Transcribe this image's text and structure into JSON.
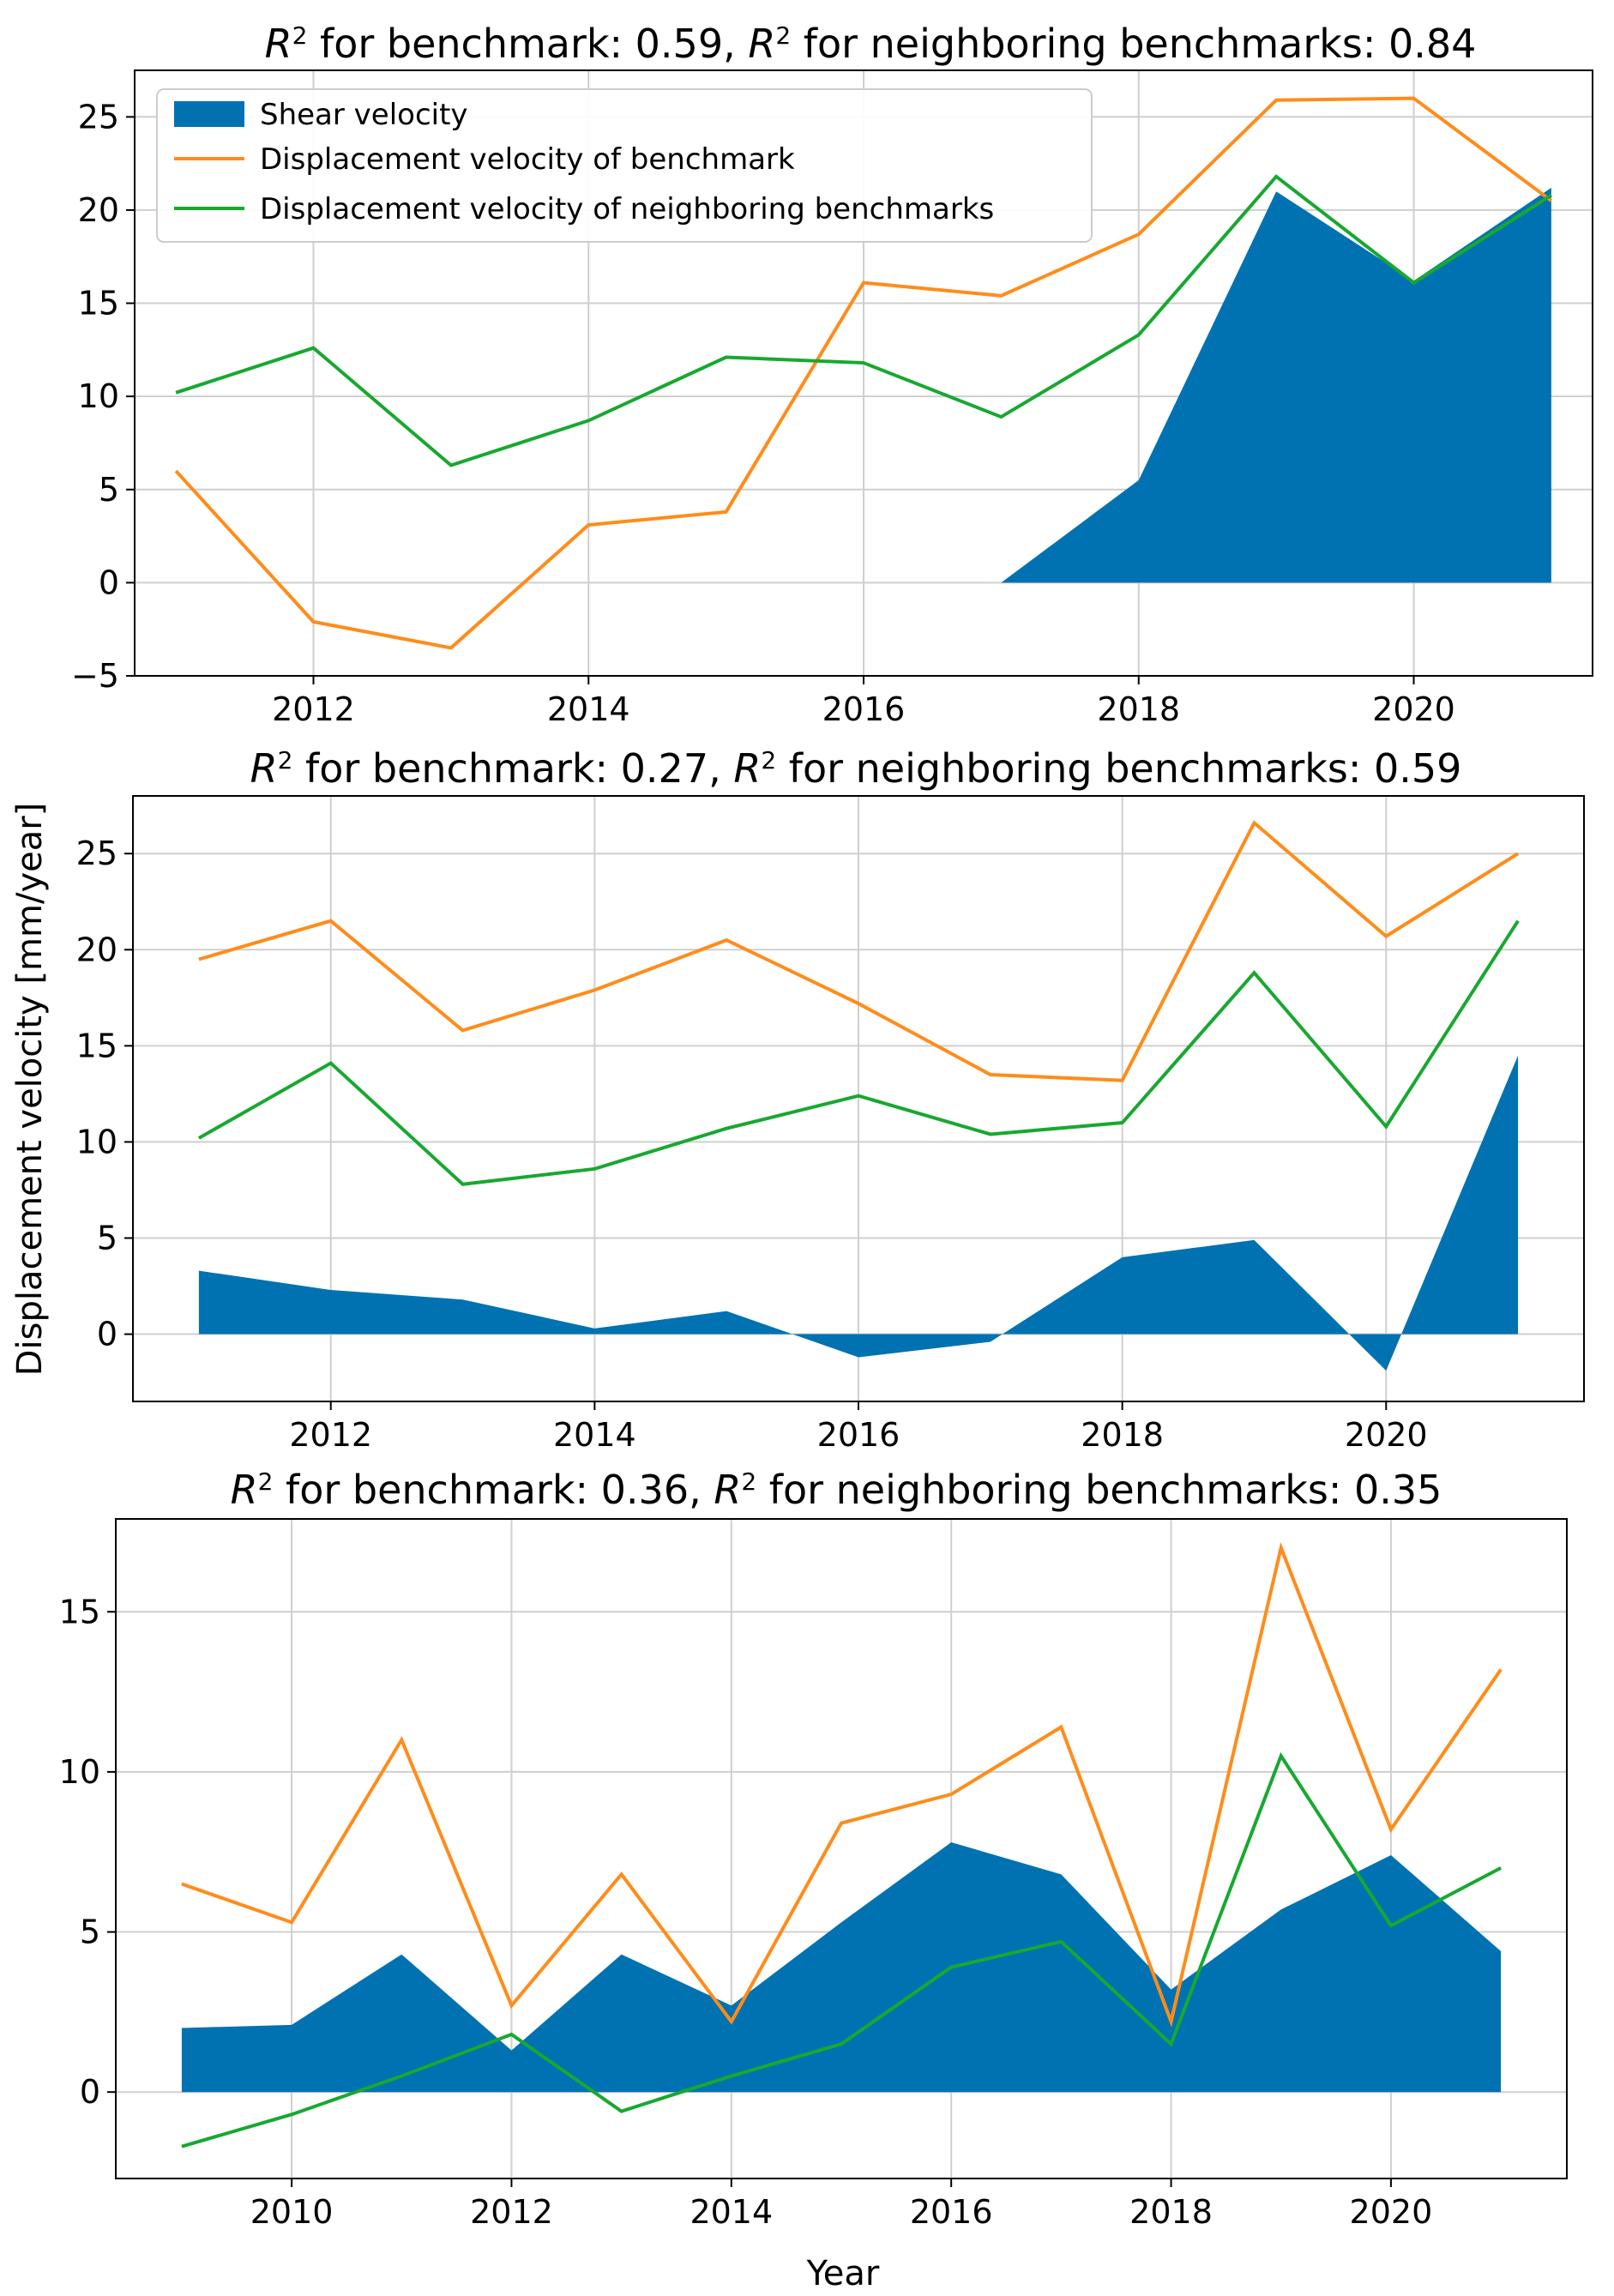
{
  "colors": {
    "shear": "#0072b2",
    "benchmark": "#ff8c1a",
    "neighbors": "#18a830",
    "grid": "#cfcfcf",
    "frame": "#000000"
  },
  "figure": {
    "ylabel": "Displacement velocity [mm/year]",
    "xlabel": "Year"
  },
  "legend": {
    "shear": "Shear velocity",
    "benchmark": "Displacement velocity of benchmark",
    "neighbors": "Displacement velocity of neighboring benchmarks"
  },
  "chart_data": [
    {
      "type": "line",
      "title_prefix": "R",
      "title_sup": "2",
      "title_mid": " for benchmark: 0.59, ",
      "title_prefix2": "R",
      "title_sup2": "2",
      "title_end": " for neighboring benchmarks: 0.84",
      "xlim": [
        2010.7,
        2021.3
      ],
      "ylim": [
        -5,
        27.5
      ],
      "xticks": [
        2012,
        2014,
        2016,
        2018,
        2020
      ],
      "yticks": [
        -5,
        0,
        5,
        10,
        15,
        20,
        25
      ],
      "x": [
        2011,
        2012,
        2013,
        2014,
        2015,
        2016,
        2017,
        2018,
        2019,
        2020,
        2021
      ],
      "series": [
        {
          "name": "Shear velocity",
          "key": "shear",
          "kind": "area",
          "x": [
            2017,
            2018,
            2019,
            2020,
            2021
          ],
          "values": [
            0,
            5.5,
            21.0,
            16.2,
            21.2
          ]
        },
        {
          "name": "Displacement velocity of benchmark",
          "key": "benchmark",
          "kind": "line",
          "values": [
            6.0,
            -2.1,
            -3.5,
            3.1,
            3.8,
            16.1,
            15.4,
            18.7,
            25.9,
            26.0,
            20.5
          ]
        },
        {
          "name": "Displacement velocity of neighboring benchmarks",
          "key": "neighbors",
          "kind": "line",
          "values": [
            10.2,
            12.6,
            6.3,
            8.7,
            12.1,
            11.8,
            8.9,
            13.3,
            21.8,
            16.1,
            20.8
          ]
        }
      ]
    },
    {
      "type": "line",
      "title_prefix": "R",
      "title_sup": "2",
      "title_mid": " for benchmark: 0.27, ",
      "title_prefix2": "R",
      "title_sup2": "2",
      "title_end": " for neighboring benchmarks: 0.59",
      "xlim": [
        2010.5,
        2021.5
      ],
      "ylim": [
        -3.5,
        28.0
      ],
      "xticks": [
        2012,
        2014,
        2016,
        2018,
        2020
      ],
      "yticks": [
        0,
        5,
        10,
        15,
        20,
        25
      ],
      "x": [
        2011,
        2012,
        2013,
        2014,
        2015,
        2016,
        2017,
        2018,
        2019,
        2020,
        2021
      ],
      "series": [
        {
          "name": "Shear velocity",
          "key": "shear",
          "kind": "area",
          "values": [
            3.3,
            2.3,
            1.8,
            0.3,
            1.2,
            -1.2,
            -0.4,
            4.0,
            4.9,
            -1.9,
            14.5
          ]
        },
        {
          "name": "Displacement velocity of benchmark",
          "key": "benchmark",
          "kind": "line",
          "values": [
            19.5,
            21.5,
            15.8,
            17.9,
            20.5,
            17.2,
            13.5,
            13.2,
            26.6,
            20.7,
            25.0
          ]
        },
        {
          "name": "Displacement velocity of neighboring benchmarks",
          "key": "neighbors",
          "kind": "line",
          "values": [
            10.2,
            14.1,
            7.8,
            8.6,
            10.7,
            12.4,
            10.4,
            11.0,
            18.8,
            10.8,
            21.5
          ]
        }
      ]
    },
    {
      "type": "line",
      "title_prefix": "R",
      "title_sup": "2",
      "title_mid": " for benchmark: 0.36, ",
      "title_prefix2": "R",
      "title_sup2": "2",
      "title_end": " for neighboring benchmarks: 0.35",
      "xlim": [
        2008.4,
        2021.6
      ],
      "ylim": [
        -2.7,
        17.9
      ],
      "xticks": [
        2010,
        2012,
        2014,
        2016,
        2018,
        2020
      ],
      "yticks": [
        0,
        5,
        10,
        15
      ],
      "x": [
        2009,
        2010,
        2011,
        2012,
        2013,
        2014,
        2015,
        2016,
        2017,
        2018,
        2019,
        2020,
        2021
      ],
      "series": [
        {
          "name": "Shear velocity",
          "key": "shear",
          "kind": "area",
          "values": [
            2.0,
            2.1,
            4.3,
            1.3,
            4.3,
            2.7,
            5.3,
            7.8,
            6.8,
            3.2,
            5.7,
            7.4,
            4.4
          ]
        },
        {
          "name": "Displacement velocity of benchmark",
          "key": "benchmark",
          "kind": "line",
          "values": [
            6.5,
            5.3,
            11.0,
            2.7,
            6.8,
            2.2,
            8.4,
            9.3,
            11.4,
            2.2,
            17.0,
            8.2,
            13.2
          ]
        },
        {
          "name": "Displacement velocity of neighboring benchmarks",
          "key": "neighbors",
          "kind": "line",
          "values": [
            -1.7,
            -0.7,
            0.5,
            1.8,
            -0.6,
            0.5,
            1.5,
            3.9,
            4.7,
            1.5,
            10.5,
            5.2,
            7.0
          ]
        }
      ]
    }
  ]
}
